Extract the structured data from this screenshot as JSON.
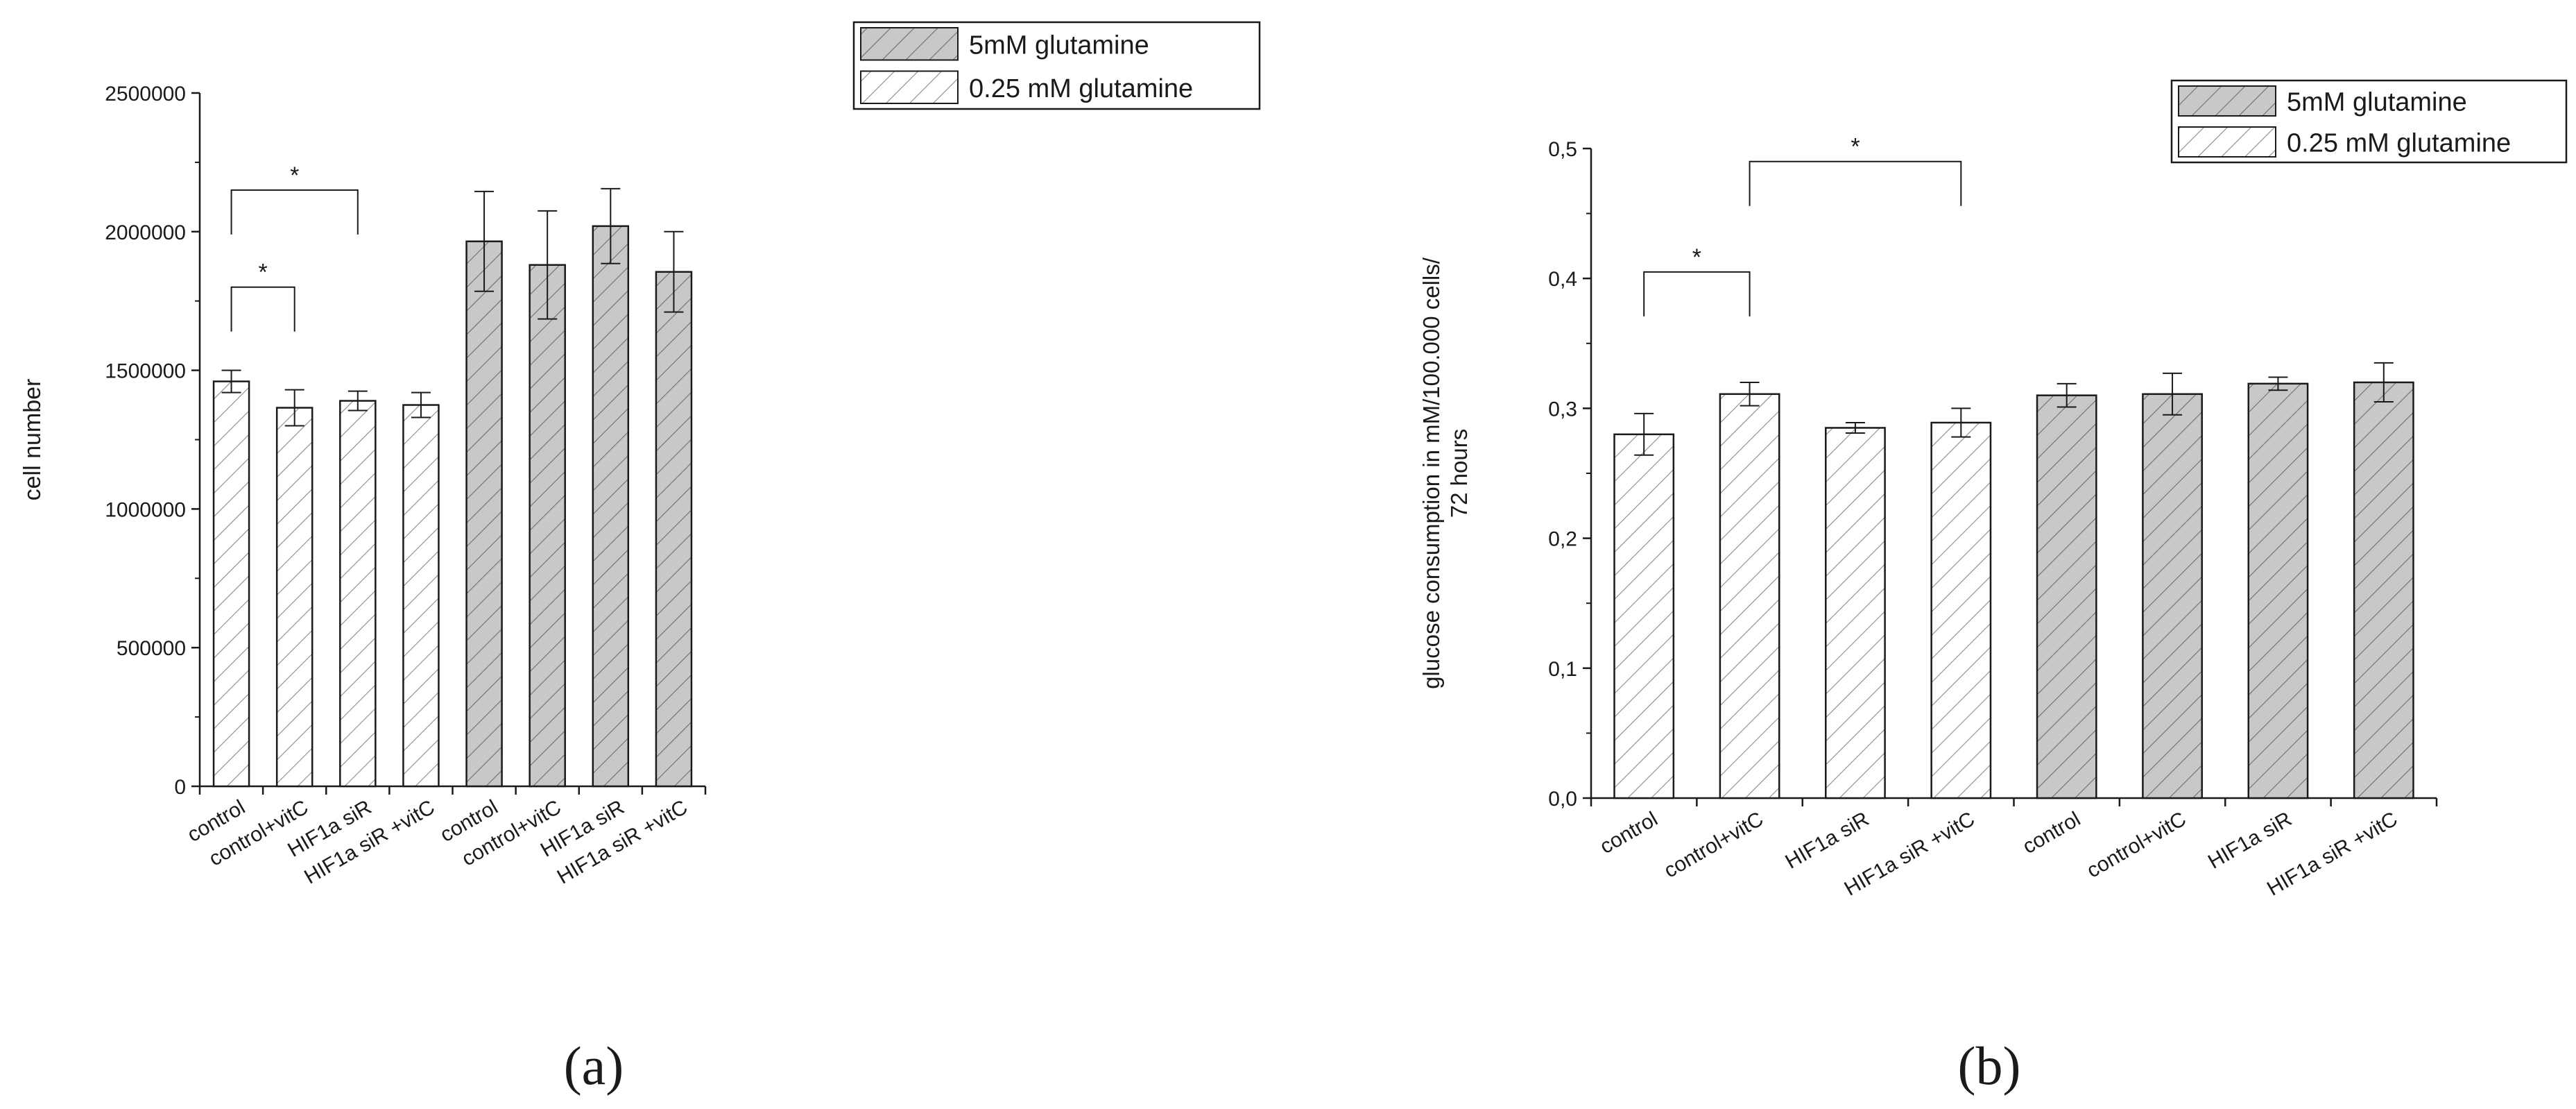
{
  "colors": {
    "filled": "#c8c8c8",
    "open": "#ffffff",
    "stroke": "#1a1a1a",
    "hatch": "#555555"
  },
  "chart_data": [
    {
      "type": "bar",
      "panel_label": "(a)",
      "ylabel": "cell number",
      "xlabel": "",
      "ylim": [
        0,
        2500000
      ],
      "yticks": [
        "0",
        "500000",
        "1000000",
        "1500000",
        "2000000",
        "2500000"
      ],
      "categories": [
        "control",
        "control+vitC",
        "HIF1a siR",
        "HIF1a siR +vitC",
        "control",
        "control+vitC",
        "HIF1a siR",
        "HIF1a siR +vitC"
      ],
      "legend": [
        {
          "label": "5mM glutamine",
          "style": "filled"
        },
        {
          "label": "0.25 mM glutamine",
          "style": "open"
        }
      ],
      "bars": [
        {
          "style": "open",
          "value": 1460000,
          "err": 40000
        },
        {
          "style": "open",
          "value": 1365000,
          "err": 65000
        },
        {
          "style": "open",
          "value": 1390000,
          "err": 35000
        },
        {
          "style": "open",
          "value": 1375000,
          "err": 45000
        },
        {
          "style": "filled",
          "value": 1965000,
          "err": 180000
        },
        {
          "style": "filled",
          "value": 1880000,
          "err": 195000
        },
        {
          "style": "filled",
          "value": 2020000,
          "err": 135000
        },
        {
          "style": "filled",
          "value": 1855000,
          "err": 145000
        }
      ],
      "significance": [
        {
          "from": 0,
          "to": 2,
          "level": 2150000,
          "label": "*"
        },
        {
          "from": 0,
          "to": 1,
          "level": 1800000,
          "label": "*"
        }
      ]
    },
    {
      "type": "bar",
      "panel_label": "(b)",
      "ylabel_lines": [
        "glucose consumption in mM/100.000 cells/",
        "72 hours"
      ],
      "xlabel": "",
      "ylim": [
        0,
        0.5
      ],
      "yticks": [
        "0,0",
        "0,1",
        "0,2",
        "0,3",
        "0,4",
        "0,5"
      ],
      "categories": [
        "control",
        "control+vitC",
        "HIF1a siR",
        "HIF1a siR +vitC",
        "control",
        "control+vitC",
        "HIF1a siR",
        "HIF1a siR +vitC"
      ],
      "legend": [
        {
          "label": "5mM glutamine",
          "style": "filled"
        },
        {
          "label": "0.25 mM glutamine",
          "style": "open"
        }
      ],
      "bars": [
        {
          "style": "open",
          "value": 0.28,
          "err": 0.016
        },
        {
          "style": "open",
          "value": 0.311,
          "err": 0.009
        },
        {
          "style": "open",
          "value": 0.285,
          "err": 0.004
        },
        {
          "style": "open",
          "value": 0.289,
          "err": 0.011
        },
        {
          "style": "filled",
          "value": 0.31,
          "err": 0.009
        },
        {
          "style": "filled",
          "value": 0.311,
          "err": 0.016
        },
        {
          "style": "filled",
          "value": 0.319,
          "err": 0.005
        },
        {
          "style": "filled",
          "value": 0.32,
          "err": 0.015
        }
      ],
      "significance": [
        {
          "from": 0,
          "to": 1,
          "level": 0.405,
          "label": "*"
        },
        {
          "from": 1,
          "to": 3,
          "level": 0.49,
          "label": "*"
        }
      ]
    }
  ]
}
